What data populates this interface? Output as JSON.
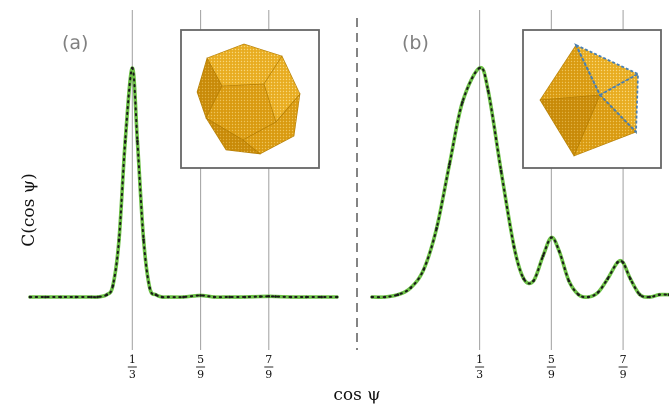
{
  "chart_data": [
    {
      "type": "line",
      "panel_label": "(a)",
      "xlabel": "cos ψ",
      "ylabel": "C(cos ψ)",
      "xlim": [
        0.0,
        1.0
      ],
      "grid_x_ticks": [
        {
          "value": 0.3333,
          "numerator": "1",
          "denominator": "3"
        },
        {
          "value": 0.5556,
          "numerator": "5",
          "denominator": "9"
        },
        {
          "value": 0.7778,
          "numerator": "7",
          "denominator": "9"
        }
      ],
      "series": [
        {
          "color": "#6cc046",
          "x": [
            0.0,
            0.05,
            0.1,
            0.15,
            0.2,
            0.22,
            0.25,
            0.27,
            0.29,
            0.31,
            0.3333,
            0.35,
            0.37,
            0.39,
            0.41,
            0.43,
            0.45,
            0.5,
            0.5556,
            0.6,
            0.65,
            0.7,
            0.75,
            0.7778,
            0.8,
            0.85,
            0.9,
            0.95,
            1.0
          ],
          "y": [
            0.0,
            0.0,
            0.0,
            0.0,
            0.0,
            0.0,
            0.01,
            0.05,
            0.25,
            0.68,
            1.0,
            0.68,
            0.25,
            0.04,
            0.01,
            0.0,
            0.0,
            0.0,
            0.007,
            0.0,
            0.0,
            0.0,
            0.002,
            0.003,
            0.002,
            0.0,
            0.0,
            0.0,
            0.0
          ]
        }
      ],
      "inset": {
        "shape": "cuboctahedron",
        "color": "#e8ac20"
      }
    },
    {
      "type": "line",
      "panel_label": "(b)",
      "xlabel": "cos ψ",
      "xlim": [
        0.0,
        0.92
      ],
      "grid_x_ticks": [
        {
          "value": 0.3333,
          "numerator": "1",
          "denominator": "3"
        },
        {
          "value": 0.5556,
          "numerator": "5",
          "denominator": "9"
        },
        {
          "value": 0.7778,
          "numerator": "7",
          "denominator": "9"
        }
      ],
      "series": [
        {
          "color": "#6cc046",
          "x": [
            0.0,
            0.04,
            0.08,
            0.12,
            0.16,
            0.2,
            0.24,
            0.28,
            0.3333,
            0.36,
            0.4,
            0.44,
            0.47,
            0.5,
            0.53,
            0.5556,
            0.58,
            0.61,
            0.64,
            0.67,
            0.7,
            0.73,
            0.76,
            0.7778,
            0.8,
            0.83,
            0.86,
            0.89,
            0.92
          ],
          "y": [
            0.0,
            0.0,
            0.01,
            0.04,
            0.12,
            0.3,
            0.58,
            0.85,
            1.0,
            0.9,
            0.55,
            0.22,
            0.08,
            0.07,
            0.18,
            0.26,
            0.2,
            0.07,
            0.01,
            0.0,
            0.02,
            0.08,
            0.15,
            0.15,
            0.08,
            0.01,
            0.0,
            0.01,
            0.01
          ]
        }
      ],
      "inset": {
        "shape": "icosahedron",
        "color": "#e8ac20",
        "edge_color": "#4a7fb0"
      }
    }
  ]
}
